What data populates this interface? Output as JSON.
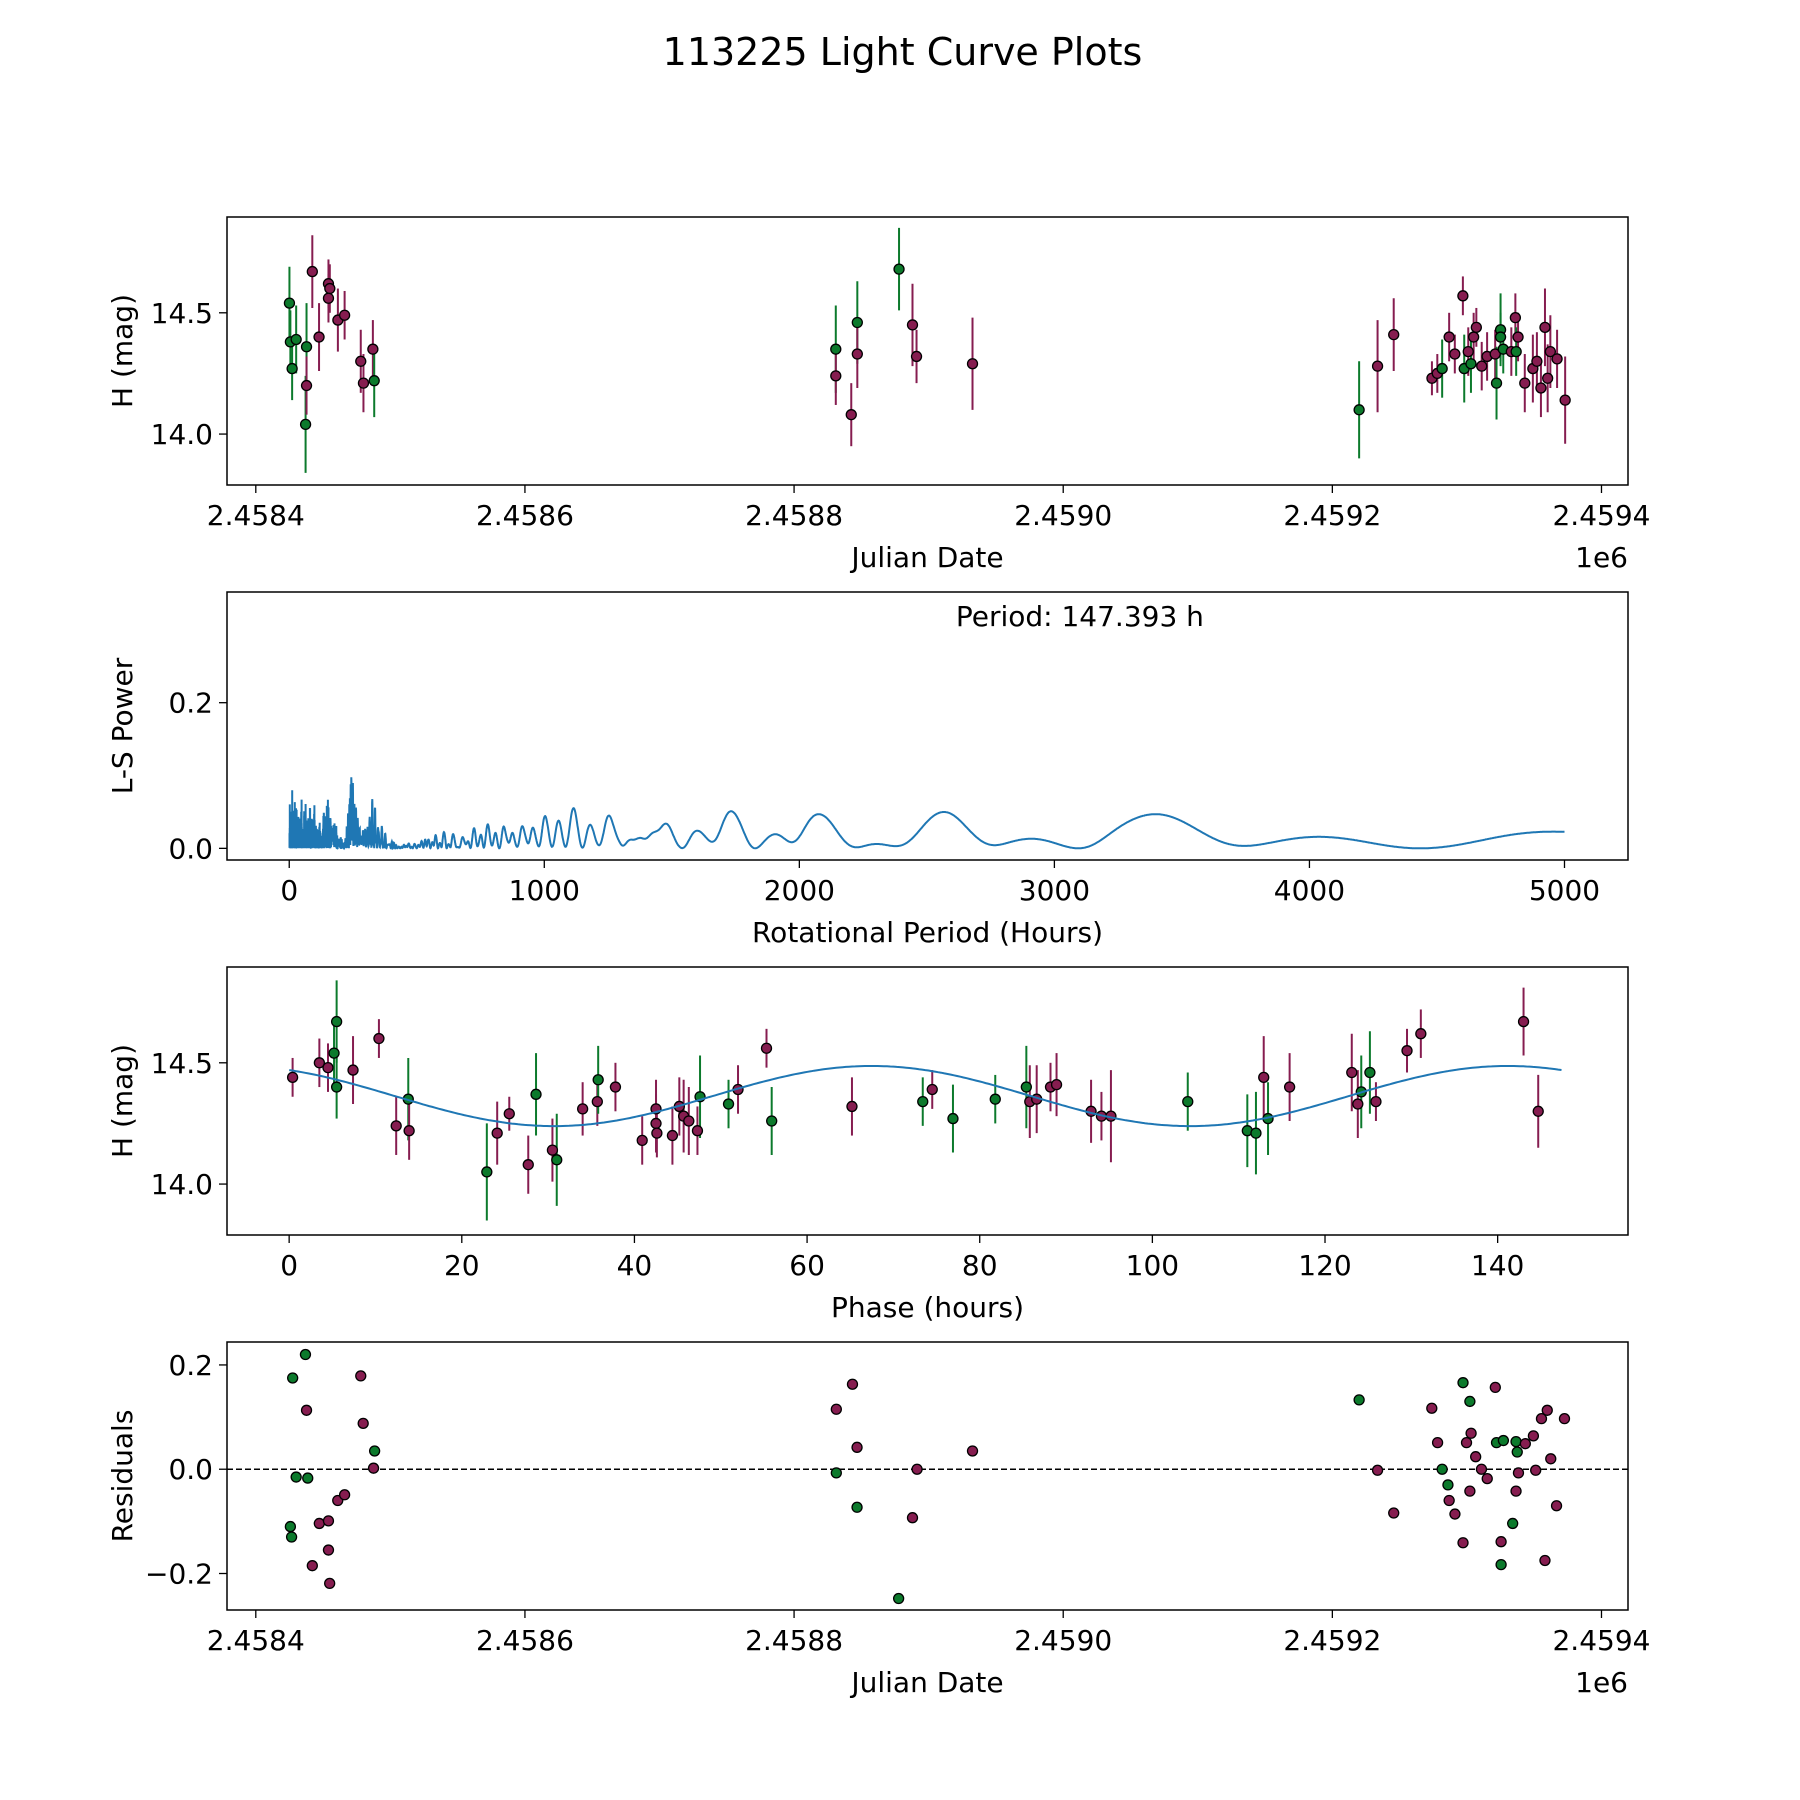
{
  "title": "113225 Light Curve Plots",
  "colors": {
    "band_p": "#861d50",
    "band_g": "#0c7a2c",
    "periodogram": "#1f77b4",
    "fit": "#1f77b4"
  },
  "chart_data": [
    {
      "id": "lightcurve",
      "type": "scatter",
      "xlabel": "Julian Date",
      "ylabel": "H (mag)",
      "xlim": [
        2458378.6,
        2459419.7
      ],
      "ylim": [
        13.79,
        14.895
      ],
      "xticks": [
        2458400,
        2458600,
        2458800,
        2459000,
        2459200,
        2459400
      ],
      "xtick_labels": [
        "2.4584",
        "2.4586",
        "2.4588",
        "2.4590",
        "2.4592",
        "2.4594"
      ],
      "x_offset_label": "1e6",
      "yticks": [
        14.0,
        14.5
      ],
      "ytick_labels": [
        "14.0",
        "14.5"
      ],
      "points": [
        [
          2458425.0,
          14.54,
          0.15,
          "g"
        ],
        [
          2458425.7,
          14.38,
          0.13,
          "g"
        ],
        [
          2458427.0,
          14.27,
          0.13,
          "g"
        ],
        [
          2458430.0,
          14.39,
          0.14,
          "g"
        ],
        [
          2458437.7,
          14.36,
          0.18,
          "g"
        ],
        [
          2458437.0,
          14.04,
          0.2,
          "g"
        ],
        [
          2458437.7,
          14.2,
          0.12,
          "p"
        ],
        [
          2458442.0,
          14.67,
          0.15,
          "p"
        ],
        [
          2458447.0,
          14.4,
          0.14,
          "p"
        ],
        [
          2458454.0,
          14.62,
          0.1,
          "p"
        ],
        [
          2458455.0,
          14.6,
          0.1,
          "p"
        ],
        [
          2458454.0,
          14.56,
          0.1,
          "p"
        ],
        [
          2458461.0,
          14.47,
          0.13,
          "p"
        ],
        [
          2458466.0,
          14.49,
          0.1,
          "p"
        ],
        [
          2458478.0,
          14.3,
          0.13,
          "p"
        ],
        [
          2458480.0,
          14.21,
          0.12,
          "p"
        ],
        [
          2458487.0,
          14.35,
          0.12,
          "p"
        ],
        [
          2458488.0,
          14.22,
          0.15,
          "g"
        ],
        [
          2458831.0,
          14.35,
          0.18,
          "g"
        ],
        [
          2458831.0,
          14.24,
          0.12,
          "p"
        ],
        [
          2458842.5,
          14.08,
          0.13,
          "p"
        ],
        [
          2458847.0,
          14.46,
          0.17,
          "g"
        ],
        [
          2458847.0,
          14.33,
          0.14,
          "p"
        ],
        [
          2458878.0,
          14.68,
          0.17,
          "g"
        ],
        [
          2458888.0,
          14.45,
          0.17,
          "p"
        ],
        [
          2458891.0,
          14.32,
          0.11,
          "p"
        ],
        [
          2458932.6,
          14.29,
          0.19,
          "p"
        ],
        [
          2459219.9,
          14.1,
          0.2,
          "g"
        ],
        [
          2459233.6,
          14.28,
          0.19,
          "p"
        ],
        [
          2459245.6,
          14.41,
          0.15,
          "p"
        ],
        [
          2459274.0,
          14.23,
          0.07,
          "p"
        ],
        [
          2459278.0,
          14.25,
          0.08,
          "p"
        ],
        [
          2459281.6,
          14.27,
          0.12,
          "g"
        ],
        [
          2459286.8,
          14.4,
          0.1,
          "p"
        ],
        [
          2459291.0,
          14.33,
          0.08,
          "p"
        ],
        [
          2459297.0,
          14.57,
          0.08,
          "p"
        ],
        [
          2459298.0,
          14.27,
          0.14,
          "g"
        ],
        [
          2459301.0,
          14.34,
          0.1,
          "p"
        ],
        [
          2459303.0,
          14.29,
          0.12,
          "g"
        ],
        [
          2459305.0,
          14.4,
          0.1,
          "p"
        ],
        [
          2459307.0,
          14.44,
          0.08,
          "p"
        ],
        [
          2459311.0,
          14.28,
          0.1,
          "p"
        ],
        [
          2459315.0,
          14.32,
          0.1,
          "p"
        ],
        [
          2459321.0,
          14.33,
          0.1,
          "p"
        ],
        [
          2459322.0,
          14.21,
          0.15,
          "g"
        ],
        [
          2459325.0,
          14.43,
          0.15,
          "g"
        ],
        [
          2459325.0,
          14.4,
          0.1,
          "g"
        ],
        [
          2459327.0,
          14.35,
          0.1,
          "g"
        ],
        [
          2459333.0,
          14.34,
          0.1,
          "p"
        ],
        [
          2459336.0,
          14.48,
          0.1,
          "p"
        ],
        [
          2459336.6,
          14.34,
          0.1,
          "g"
        ],
        [
          2459338.0,
          14.4,
          0.1,
          "p"
        ],
        [
          2459343.0,
          14.21,
          0.12,
          "p"
        ],
        [
          2459349.0,
          14.27,
          0.14,
          "p"
        ],
        [
          2459352.0,
          14.3,
          0.12,
          "p"
        ],
        [
          2459355.0,
          14.19,
          0.12,
          "p"
        ],
        [
          2459358.0,
          14.44,
          0.16,
          "p"
        ],
        [
          2459360.0,
          14.23,
          0.14,
          "p"
        ],
        [
          2459362.0,
          14.34,
          0.15,
          "p"
        ],
        [
          2459367.0,
          14.31,
          0.12,
          "p"
        ],
        [
          2459373.0,
          14.14,
          0.18,
          "p"
        ]
      ]
    },
    {
      "id": "periodogram",
      "type": "line",
      "xlabel": "Rotational Period (Hours)",
      "ylabel": "L-S Power",
      "xlim": [
        -244,
        5249
      ],
      "ylim": [
        -0.016,
        0.352
      ],
      "xticks": [
        0,
        1000,
        2000,
        3000,
        4000,
        5000
      ],
      "xtick_labels": [
        "0",
        "1000",
        "2000",
        "3000",
        "4000",
        "5000"
      ],
      "yticks": [
        0.0,
        0.2
      ],
      "ytick_labels": [
        "0.0",
        "0.2"
      ],
      "period_range_hours": [
        1,
        5000
      ],
      "annotation": "Period: 147.393 h"
    },
    {
      "id": "phased",
      "type": "scatter",
      "xlabel": "Phase (hours)",
      "ylabel": "H (mag)",
      "xlim": [
        -7.2,
        155.1
      ],
      "ylim": [
        13.79,
        14.895
      ],
      "xticks": [
        0,
        20,
        40,
        60,
        80,
        100,
        120,
        140
      ],
      "xtick_labels": [
        "0",
        "20",
        "40",
        "60",
        "80",
        "100",
        "120",
        "140"
      ],
      "yticks": [
        14.0,
        14.5
      ],
      "ytick_labels": [
        "14.0",
        "14.5"
      ],
      "fit": {
        "mean": 14.363,
        "amplitude": 0.124,
        "peak_phase": 67.5,
        "sub_period": 73.7,
        "range": [
          0,
          147.393
        ]
      },
      "points": [
        [
          0.4,
          14.44,
          0.08,
          "p"
        ],
        [
          3.5,
          14.5,
          0.1,
          "p"
        ],
        [
          4.5,
          14.48,
          0.1,
          "p"
        ],
        [
          5.2,
          14.54,
          0.14,
          "g"
        ],
        [
          5.5,
          14.67,
          0.17,
          "g"
        ],
        [
          5.5,
          14.4,
          0.13,
          "g"
        ],
        [
          7.4,
          14.47,
          0.14,
          "p"
        ],
        [
          10.4,
          14.6,
          0.08,
          "p"
        ],
        [
          12.4,
          14.24,
          0.12,
          "p"
        ],
        [
          13.8,
          14.35,
          0.17,
          "g"
        ],
        [
          13.9,
          14.22,
          0.12,
          "p"
        ],
        [
          22.9,
          14.05,
          0.2,
          "g"
        ],
        [
          24.1,
          14.21,
          0.13,
          "p"
        ],
        [
          25.5,
          14.29,
          0.07,
          "p"
        ],
        [
          27.7,
          14.08,
          0.12,
          "p"
        ],
        [
          28.6,
          14.37,
          0.17,
          "g"
        ],
        [
          30.5,
          14.14,
          0.13,
          "p"
        ],
        [
          31.0,
          14.1,
          0.19,
          "g"
        ],
        [
          34.0,
          14.31,
          0.11,
          "p"
        ],
        [
          35.7,
          14.34,
          0.1,
          "p"
        ],
        [
          35.8,
          14.43,
          0.14,
          "g"
        ],
        [
          37.8,
          14.4,
          0.1,
          "p"
        ],
        [
          40.9,
          14.18,
          0.1,
          "p"
        ],
        [
          42.5,
          14.31,
          0.12,
          "p"
        ],
        [
          42.5,
          14.25,
          0.12,
          "p"
        ],
        [
          42.6,
          14.21,
          0.1,
          "p"
        ],
        [
          44.4,
          14.2,
          0.12,
          "p"
        ],
        [
          45.2,
          14.32,
          0.12,
          "p"
        ],
        [
          45.7,
          14.28,
          0.15,
          "p"
        ],
        [
          46.3,
          14.26,
          0.14,
          "p"
        ],
        [
          47.3,
          14.22,
          0.1,
          "p"
        ],
        [
          47.6,
          14.36,
          0.17,
          "g"
        ],
        [
          50.9,
          14.33,
          0.1,
          "g"
        ],
        [
          52.0,
          14.39,
          0.1,
          "p"
        ],
        [
          55.3,
          14.56,
          0.08,
          "p"
        ],
        [
          55.9,
          14.26,
          0.14,
          "g"
        ],
        [
          65.2,
          14.32,
          0.12,
          "p"
        ],
        [
          73.4,
          14.34,
          0.1,
          "g"
        ],
        [
          74.5,
          14.39,
          0.08,
          "p"
        ],
        [
          76.9,
          14.27,
          0.14,
          "g"
        ],
        [
          81.8,
          14.35,
          0.1,
          "g"
        ],
        [
          85.4,
          14.4,
          0.17,
          "g"
        ],
        [
          85.8,
          14.34,
          0.15,
          "p"
        ],
        [
          86.6,
          14.35,
          0.14,
          "p"
        ],
        [
          88.2,
          14.4,
          0.1,
          "p"
        ],
        [
          88.9,
          14.41,
          0.13,
          "p"
        ],
        [
          92.9,
          14.3,
          0.13,
          "p"
        ],
        [
          94.1,
          14.28,
          0.1,
          "p"
        ],
        [
          95.2,
          14.28,
          0.19,
          "p"
        ],
        [
          104.1,
          14.34,
          0.12,
          "g"
        ],
        [
          111.0,
          14.22,
          0.15,
          "g"
        ],
        [
          112.0,
          14.21,
          0.17,
          "g"
        ],
        [
          112.9,
          14.44,
          0.17,
          "p"
        ],
        [
          113.4,
          14.27,
          0.15,
          "g"
        ],
        [
          115.9,
          14.4,
          0.14,
          "p"
        ],
        [
          123.1,
          14.46,
          0.16,
          "p"
        ],
        [
          123.8,
          14.33,
          0.14,
          "p"
        ],
        [
          124.2,
          14.38,
          0.15,
          "g"
        ],
        [
          125.2,
          14.46,
          0.17,
          "g"
        ],
        [
          125.9,
          14.34,
          0.08,
          "p"
        ],
        [
          129.5,
          14.55,
          0.09,
          "p"
        ],
        [
          131.1,
          14.62,
          0.1,
          "p"
        ],
        [
          143.0,
          14.67,
          0.14,
          "p"
        ],
        [
          144.7,
          14.3,
          0.15,
          "p"
        ]
      ]
    },
    {
      "id": "residuals",
      "type": "scatter",
      "xlabel": "Julian Date",
      "ylabel": "Residuals",
      "xlim": [
        2458378.6,
        2459419.7
      ],
      "ylim": [
        -0.27,
        0.244
      ],
      "xticks": [
        2458400,
        2458600,
        2458800,
        2459000,
        2459200,
        2459400
      ],
      "xtick_labels": [
        "2.4584",
        "2.4586",
        "2.4588",
        "2.4590",
        "2.4592",
        "2.4594"
      ],
      "x_offset_label": "1e6",
      "yticks": [
        -0.2,
        0.0,
        0.2
      ],
      "ytick_labels": [
        "−0.2",
        "0.0",
        "0.2"
      ],
      "zero_line": true,
      "points": [
        [
          2458425.7,
          -0.11,
          "g"
        ],
        [
          2458426.6,
          -0.13,
          "g"
        ],
        [
          2458427.4,
          0.175,
          "g"
        ],
        [
          2458430.0,
          -0.015,
          "g"
        ],
        [
          2458436.9,
          0.22,
          "g"
        ],
        [
          2458437.7,
          0.113,
          "p"
        ],
        [
          2458438.6,
          -0.017,
          "g"
        ],
        [
          2458442.0,
          -0.185,
          "p"
        ],
        [
          2458447.2,
          -0.104,
          "p"
        ],
        [
          2458454.0,
          -0.099,
          "p"
        ],
        [
          2458454.0,
          -0.155,
          "p"
        ],
        [
          2458454.9,
          -0.219,
          "p"
        ],
        [
          2458460.9,
          -0.06,
          "p"
        ],
        [
          2458466.0,
          -0.049,
          "p"
        ],
        [
          2458478.0,
          0.179,
          "p"
        ],
        [
          2458479.8,
          0.088,
          "p"
        ],
        [
          2458488.3,
          0.035,
          "g"
        ],
        [
          2458487.5,
          0.002,
          "p"
        ],
        [
          2458831.4,
          0.115,
          "p"
        ],
        [
          2458831.4,
          -0.007,
          "g"
        ],
        [
          2458843.4,
          0.163,
          "p"
        ],
        [
          2458846.8,
          0.042,
          "p"
        ],
        [
          2458846.8,
          -0.073,
          "g"
        ],
        [
          2458877.7,
          -0.248,
          "g"
        ],
        [
          2458888.0,
          -0.093,
          "p"
        ],
        [
          2458891.4,
          0.0,
          "p"
        ],
        [
          2458932.6,
          0.035,
          "p"
        ],
        [
          2459219.9,
          0.133,
          "g"
        ],
        [
          2459233.6,
          -0.002,
          "p"
        ],
        [
          2459245.6,
          -0.084,
          "p"
        ],
        [
          2459273.9,
          0.117,
          "p"
        ],
        [
          2459278.2,
          0.051,
          "p"
        ],
        [
          2459281.6,
          0.0,
          "g"
        ],
        [
          2459285.9,
          -0.03,
          "g"
        ],
        [
          2459286.8,
          -0.06,
          "p"
        ],
        [
          2459291.1,
          -0.086,
          "p"
        ],
        [
          2459297.1,
          0.166,
          "g"
        ],
        [
          2459297.1,
          -0.141,
          "p"
        ],
        [
          2459299.7,
          0.051,
          "p"
        ],
        [
          2459302.2,
          0.13,
          "g"
        ],
        [
          2459302.2,
          -0.042,
          "p"
        ],
        [
          2459303.1,
          0.069,
          "p"
        ],
        [
          2459306.5,
          0.024,
          "p"
        ],
        [
          2459310.8,
          0.0,
          "p"
        ],
        [
          2459315.1,
          -0.018,
          "p"
        ],
        [
          2459321.1,
          0.157,
          "p"
        ],
        [
          2459322.0,
          0.051,
          "g"
        ],
        [
          2459325.4,
          -0.183,
          "g"
        ],
        [
          2459325.4,
          -0.139,
          "p"
        ],
        [
          2459327.1,
          0.055,
          "g"
        ],
        [
          2459334.0,
          -0.104,
          "g"
        ],
        [
          2459336.5,
          -0.042,
          "p"
        ],
        [
          2459336.5,
          0.053,
          "g"
        ],
        [
          2459337.4,
          0.033,
          "g"
        ],
        [
          2459338.3,
          -0.007,
          "p"
        ],
        [
          2459343.4,
          0.049,
          "p"
        ],
        [
          2459349.4,
          0.064,
          "p"
        ],
        [
          2459351.1,
          -0.002,
          "p"
        ],
        [
          2459355.4,
          0.097,
          "p"
        ],
        [
          2459358.0,
          -0.175,
          "p"
        ],
        [
          2459359.7,
          0.113,
          "p"
        ],
        [
          2459362.3,
          0.02,
          "p"
        ],
        [
          2459366.6,
          -0.07,
          "p"
        ],
        [
          2459372.5,
          0.097,
          "p"
        ]
      ]
    }
  ]
}
